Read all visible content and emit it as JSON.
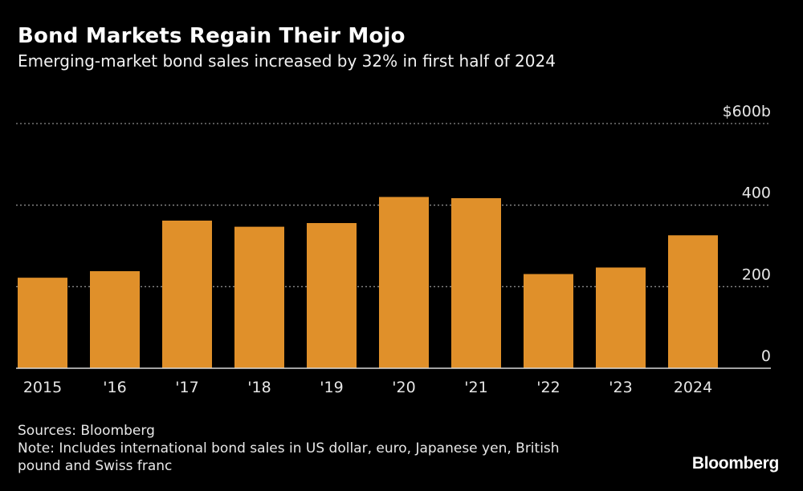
{
  "header": {
    "title": "Bond Markets Regain Their Mojo",
    "subtitle": "Emerging-market bond sales increased by 32% in first half of 2024"
  },
  "footer": {
    "sources": "Sources: Bloomberg",
    "note_line1": "Note: Includes international bond sales in US dollar, euro, Japanese yen, British",
    "note_line2": "pound and Swiss franc",
    "brand": "Bloomberg"
  },
  "colors": {
    "background": "#000000",
    "bar": "#e0902a",
    "grid": "#8a8a8a",
    "axis": "#d9d9d9",
    "text": "#ffffff"
  },
  "chart_data": {
    "type": "bar",
    "title": "Bond Markets Regain Their Mojo",
    "subtitle": "Emerging-market bond sales increased by 32% in first half of 2024",
    "categories": [
      "2015",
      "'16",
      "'17",
      "'18",
      "'19",
      "'20",
      "'21",
      "'22",
      "'23",
      "2024"
    ],
    "values": [
      222,
      238,
      362,
      347,
      356,
      420,
      417,
      231,
      247,
      326
    ],
    "unit": "$ billions",
    "xlabel": "",
    "ylabel": "",
    "ylim": [
      0,
      600
    ],
    "yticks": [
      0,
      200,
      400,
      600
    ],
    "ytick_labels": [
      "0",
      "200",
      "400",
      "$600b"
    ],
    "grid": true,
    "y_axis_side": "right"
  }
}
